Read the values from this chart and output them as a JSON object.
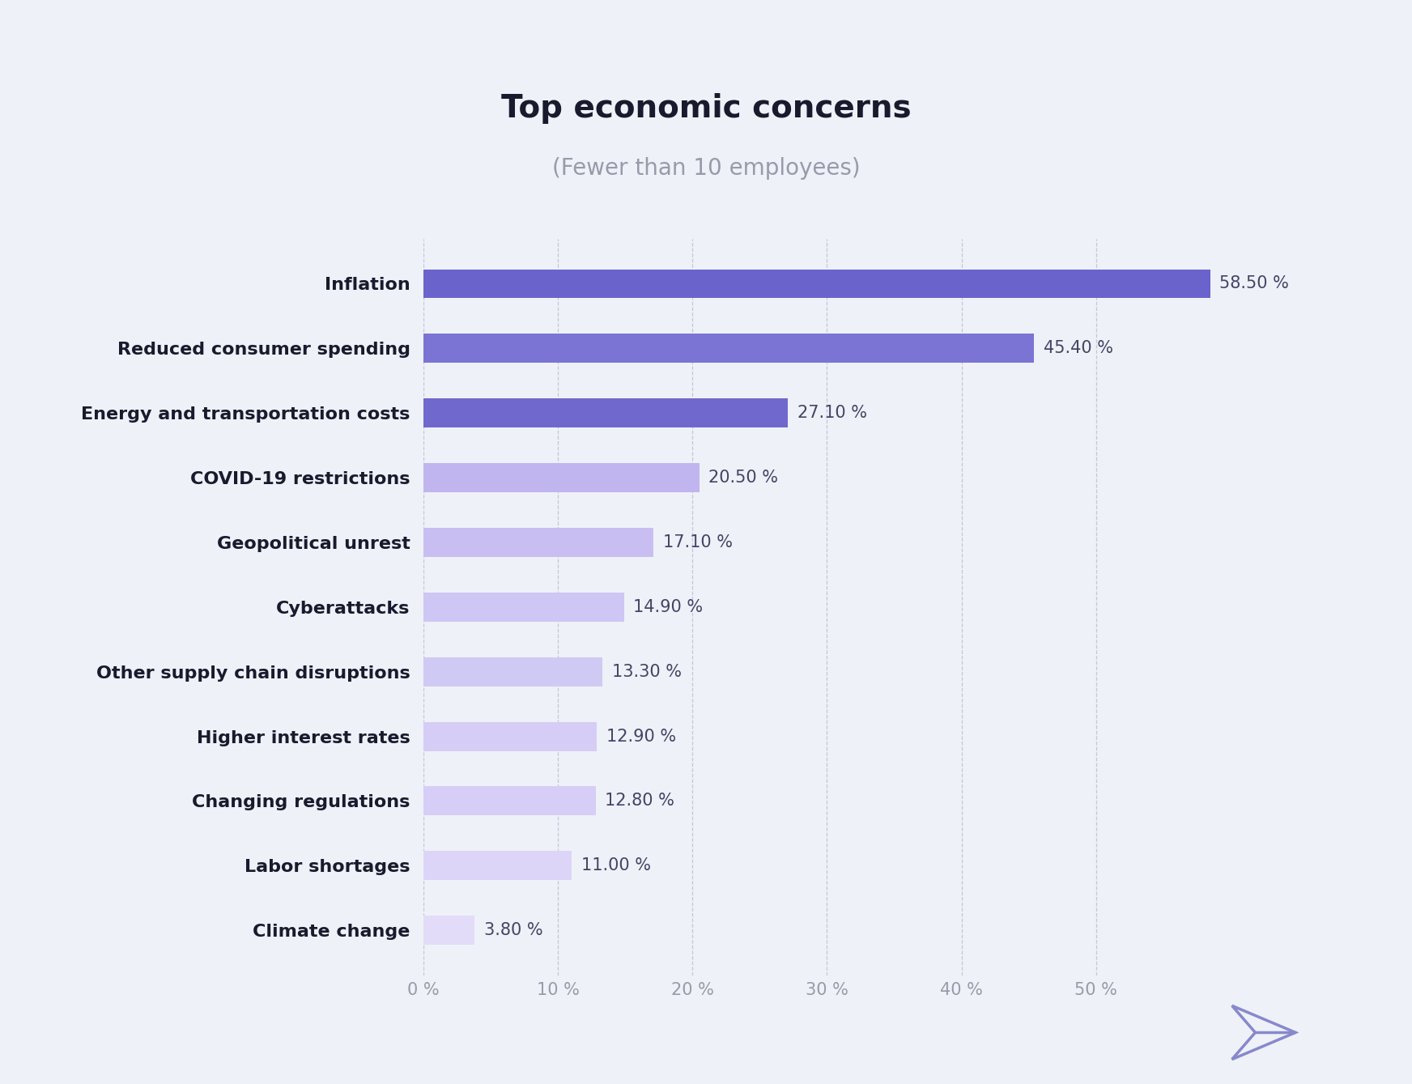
{
  "title": "Top economic concerns",
  "subtitle": "(Fewer than 10 employees)",
  "categories": [
    "Inflation",
    "Reduced consumer spending",
    "Energy and transportation costs",
    "COVID-19 restrictions",
    "Geopolitical unrest",
    "Cyberattacks",
    "Other supply chain disruptions",
    "Higher interest rates",
    "Changing regulations",
    "Labor shortages",
    "Climate change"
  ],
  "values": [
    58.5,
    45.4,
    27.1,
    20.5,
    17.1,
    14.9,
    13.3,
    12.9,
    12.8,
    11.0,
    3.8
  ],
  "bar_colors": [
    "#6B63CC",
    "#7B74D4",
    "#7068CC",
    "#C0B5EE",
    "#C8BEF2",
    "#CEC6F4",
    "#CFCAF4",
    "#D5CDF6",
    "#D6CEF6",
    "#DCD5F8",
    "#E2DCF9"
  ],
  "label_color": "#1a1a2e",
  "value_label_color": "#444466",
  "background_color": "#eef1f7",
  "grid_color": "#c0c4d4",
  "title_fontsize": 28,
  "subtitle_fontsize": 20,
  "tick_fontsize": 15,
  "label_fontsize": 16,
  "value_fontsize": 15,
  "xlim": [
    0,
    63
  ],
  "xticks": [
    0,
    10,
    20,
    30,
    40,
    50
  ],
  "xtick_labels": [
    "0 %",
    "10 %",
    "20 %",
    "30 %",
    "40 %",
    "50 %"
  ],
  "icon_color": "#8888cc"
}
